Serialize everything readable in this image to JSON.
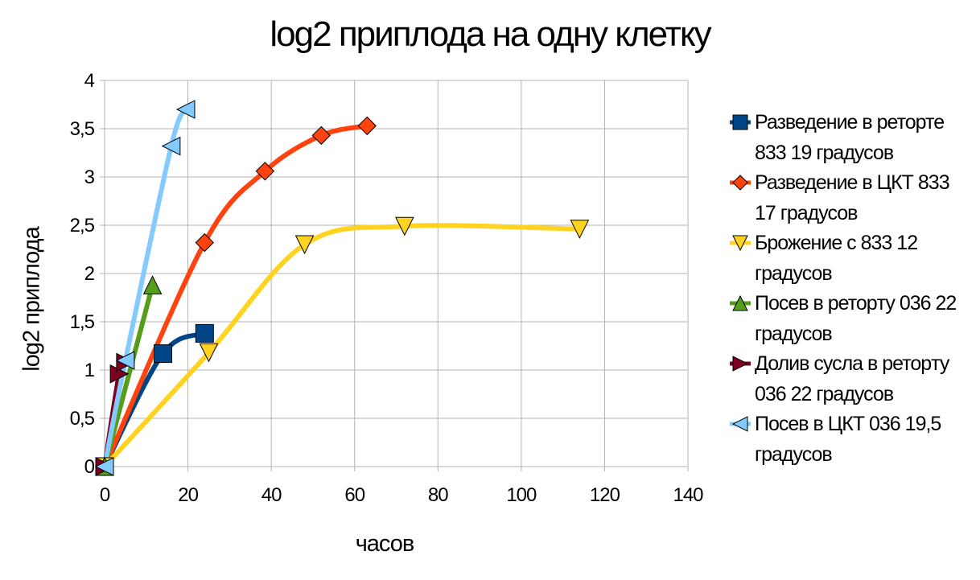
{
  "chart_data": {
    "type": "line",
    "title": "log2 приплода на одну клетку",
    "xlabel": "часов",
    "ylabel": "log2 приплода",
    "xlim": [
      0,
      140
    ],
    "ylim": [
      0,
      4
    ],
    "x_ticks": [
      "0",
      "20",
      "40",
      "60",
      "80",
      "100",
      "120",
      "140"
    ],
    "y_ticks": [
      "0",
      "0,5",
      "1",
      "1,5",
      "2",
      "2,5",
      "3",
      "3,5",
      "4"
    ],
    "grid": true,
    "legend_position": "right",
    "series": [
      {
        "name": "Разведение в реторте 833 19 градусов",
        "color": "#004586",
        "marker": "square",
        "x": [
          0,
          14,
          24
        ],
        "y": [
          0,
          1.17,
          1.38
        ]
      },
      {
        "name": "Разведение в ЦКТ 833 17 градусов",
        "color": "#ff420e",
        "marker": "diamond",
        "x": [
          0,
          24,
          38.5,
          52,
          63
        ],
        "y": [
          0,
          2.32,
          3.06,
          3.43,
          3.53
        ]
      },
      {
        "name": "Брожение с 833 12 градусов",
        "color": "#ffd320",
        "marker": "triangle-down",
        "x": [
          0,
          25,
          48,
          72,
          114
        ],
        "y": [
          0,
          1.18,
          2.3,
          2.49,
          2.46
        ]
      },
      {
        "name": "Посев в ретоpту 036 22 градусов",
        "color": "#579d1c",
        "marker": "triangle-up",
        "x": [
          0,
          11.5
        ],
        "y": [
          0,
          1.88
        ]
      },
      {
        "name": "Долив сусла в ретоpту 036 22 градусов",
        "color": "#7e0021",
        "marker": "triangle-right",
        "x": [
          0,
          3.5,
          5
        ],
        "y": [
          0,
          0.96,
          1.08
        ]
      },
      {
        "name": "Посев в ЦКТ 036 19,5 градусов",
        "color": "#83caff",
        "marker": "triangle-left",
        "x": [
          0,
          5,
          16,
          19.5
        ],
        "y": [
          0,
          1.1,
          3.32,
          3.7
        ]
      }
    ]
  }
}
